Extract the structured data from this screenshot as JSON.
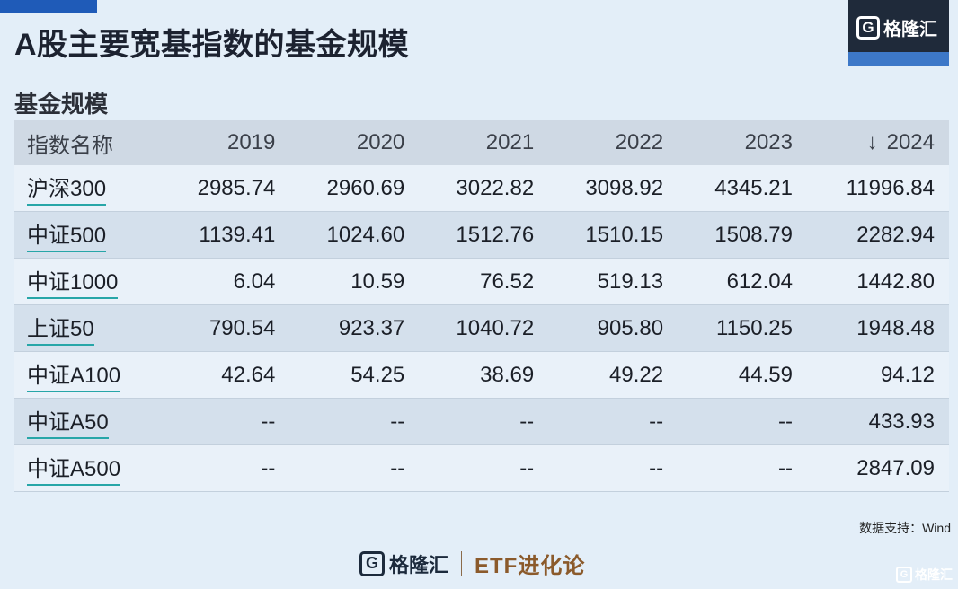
{
  "title": "A股主要宽基指数的基金规模",
  "brand": {
    "name": "格隆汇",
    "badge_letter": "G",
    "accent": "#1f5bb8",
    "dark": "#1f2a3a"
  },
  "section_label": "基金规模",
  "table": {
    "header": [
      "指数名称",
      "2019",
      "2020",
      "2021",
      "2022",
      "2023",
      "2024"
    ],
    "sort_arrow": "↓",
    "rows": [
      [
        "沪深300",
        "2985.74",
        "2960.69",
        "3022.82",
        "3098.92",
        "4345.21",
        "11996.84"
      ],
      [
        "中证500",
        "1139.41",
        "1024.60",
        "1512.76",
        "1510.15",
        "1508.79",
        "2282.94"
      ],
      [
        "中证1000",
        "6.04",
        "10.59",
        "76.52",
        "519.13",
        "612.04",
        "1442.80"
      ],
      [
        "上证50",
        "790.54",
        "923.37",
        "1040.72",
        "905.80",
        "1150.25",
        "1948.48"
      ],
      [
        "中证A100",
        "42.64",
        "54.25",
        "38.69",
        "49.22",
        "44.59",
        "94.12"
      ],
      [
        "中证A50",
        "--",
        "--",
        "--",
        "--",
        "--",
        "433.93"
      ],
      [
        "中证A500",
        "--",
        "--",
        "--",
        "--",
        "--",
        "2847.09"
      ]
    ]
  },
  "chart_data": {
    "type": "table",
    "title": "A股主要宽基指数的基金规模",
    "subtitle": "基金规模",
    "columns": [
      "指数名称",
      "2019",
      "2020",
      "2021",
      "2022",
      "2023",
      "2024"
    ],
    "rows": [
      {
        "name": "沪深300",
        "values": [
          2985.74,
          2960.69,
          3022.82,
          3098.92,
          4345.21,
          11996.84
        ]
      },
      {
        "name": "中证500",
        "values": [
          1139.41,
          1024.6,
          1512.76,
          1510.15,
          1508.79,
          2282.94
        ]
      },
      {
        "name": "中证1000",
        "values": [
          6.04,
          10.59,
          76.52,
          519.13,
          612.04,
          1442.8
        ]
      },
      {
        "name": "上证50",
        "values": [
          790.54,
          923.37,
          1040.72,
          905.8,
          1150.25,
          1948.48
        ]
      },
      {
        "name": "中证A100",
        "values": [
          42.64,
          54.25,
          38.69,
          49.22,
          44.59,
          94.12
        ]
      },
      {
        "name": "中证A50",
        "values": [
          null,
          null,
          null,
          null,
          null,
          433.93
        ]
      },
      {
        "name": "中证A500",
        "values": [
          null,
          null,
          null,
          null,
          null,
          2847.09
        ]
      }
    ],
    "sorted_by": "2024"
  },
  "source": "数据支持：Wind",
  "footer": {
    "brand": "格隆汇",
    "etf": "ETF进化论"
  },
  "watermark": {
    "brand": "格隆汇",
    "etf": "ETF进化论"
  }
}
